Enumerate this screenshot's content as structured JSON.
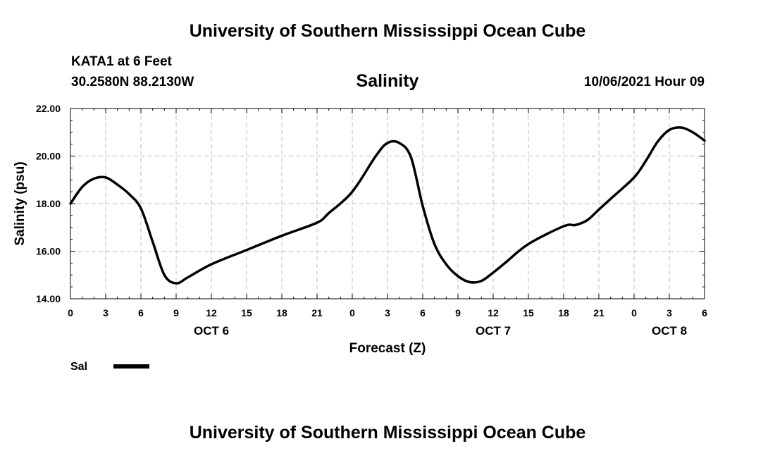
{
  "header": {
    "title": "University of Southern Mississippi Ocean Cube",
    "station": "KATA1 at 6 Feet",
    "coordinates": "30.2580N  88.2130W",
    "date": "10/06/2021 Hour 09"
  },
  "footer": {
    "title": "University of Southern Mississippi Ocean Cube"
  },
  "chart_data": {
    "type": "line",
    "title": "Salinity",
    "xlabel": "Forecast (Z)",
    "ylabel": "Salinity (psu)",
    "ylim": [
      14,
      22
    ],
    "xlim": [
      0,
      54
    ],
    "grid": true,
    "y_ticks": [
      "14.00",
      "16.00",
      "18.00",
      "20.00",
      "22.00"
    ],
    "x_ticks": [
      "0",
      "3",
      "6",
      "9",
      "12",
      "15",
      "18",
      "21",
      "0",
      "3",
      "6",
      "9",
      "12",
      "15",
      "18",
      "21",
      "0",
      "3",
      "6"
    ],
    "day_labels": [
      {
        "label": "OCT 6",
        "hour": 12
      },
      {
        "label": "OCT 7",
        "hour": 36
      },
      {
        "label": "OCT 8",
        "hour": 51
      }
    ],
    "legend": {
      "label": "Sal",
      "placement": "bottom-left"
    },
    "series": [
      {
        "name": "Sal",
        "color": "#000000",
        "x": [
          0,
          1,
          2,
          3,
          4,
          5,
          6,
          7,
          8,
          9,
          10,
          12,
          15,
          18,
          21,
          22,
          24,
          26,
          27,
          28,
          29,
          30,
          31,
          32,
          33,
          34,
          35,
          36,
          37,
          39,
          42,
          43,
          44,
          45,
          46,
          48,
          49,
          50,
          51,
          52,
          53,
          54
        ],
        "values": [
          18.0,
          18.7,
          19.05,
          19.1,
          18.8,
          18.4,
          17.8,
          16.4,
          15.0,
          14.65,
          14.9,
          15.45,
          16.05,
          16.65,
          17.2,
          17.6,
          18.5,
          20.0,
          20.55,
          20.55,
          19.95,
          17.9,
          16.3,
          15.45,
          14.95,
          14.7,
          14.75,
          15.1,
          15.5,
          16.3,
          17.05,
          17.1,
          17.3,
          17.75,
          18.2,
          19.1,
          19.8,
          20.6,
          21.1,
          21.2,
          21.0,
          20.65
        ]
      }
    ]
  }
}
